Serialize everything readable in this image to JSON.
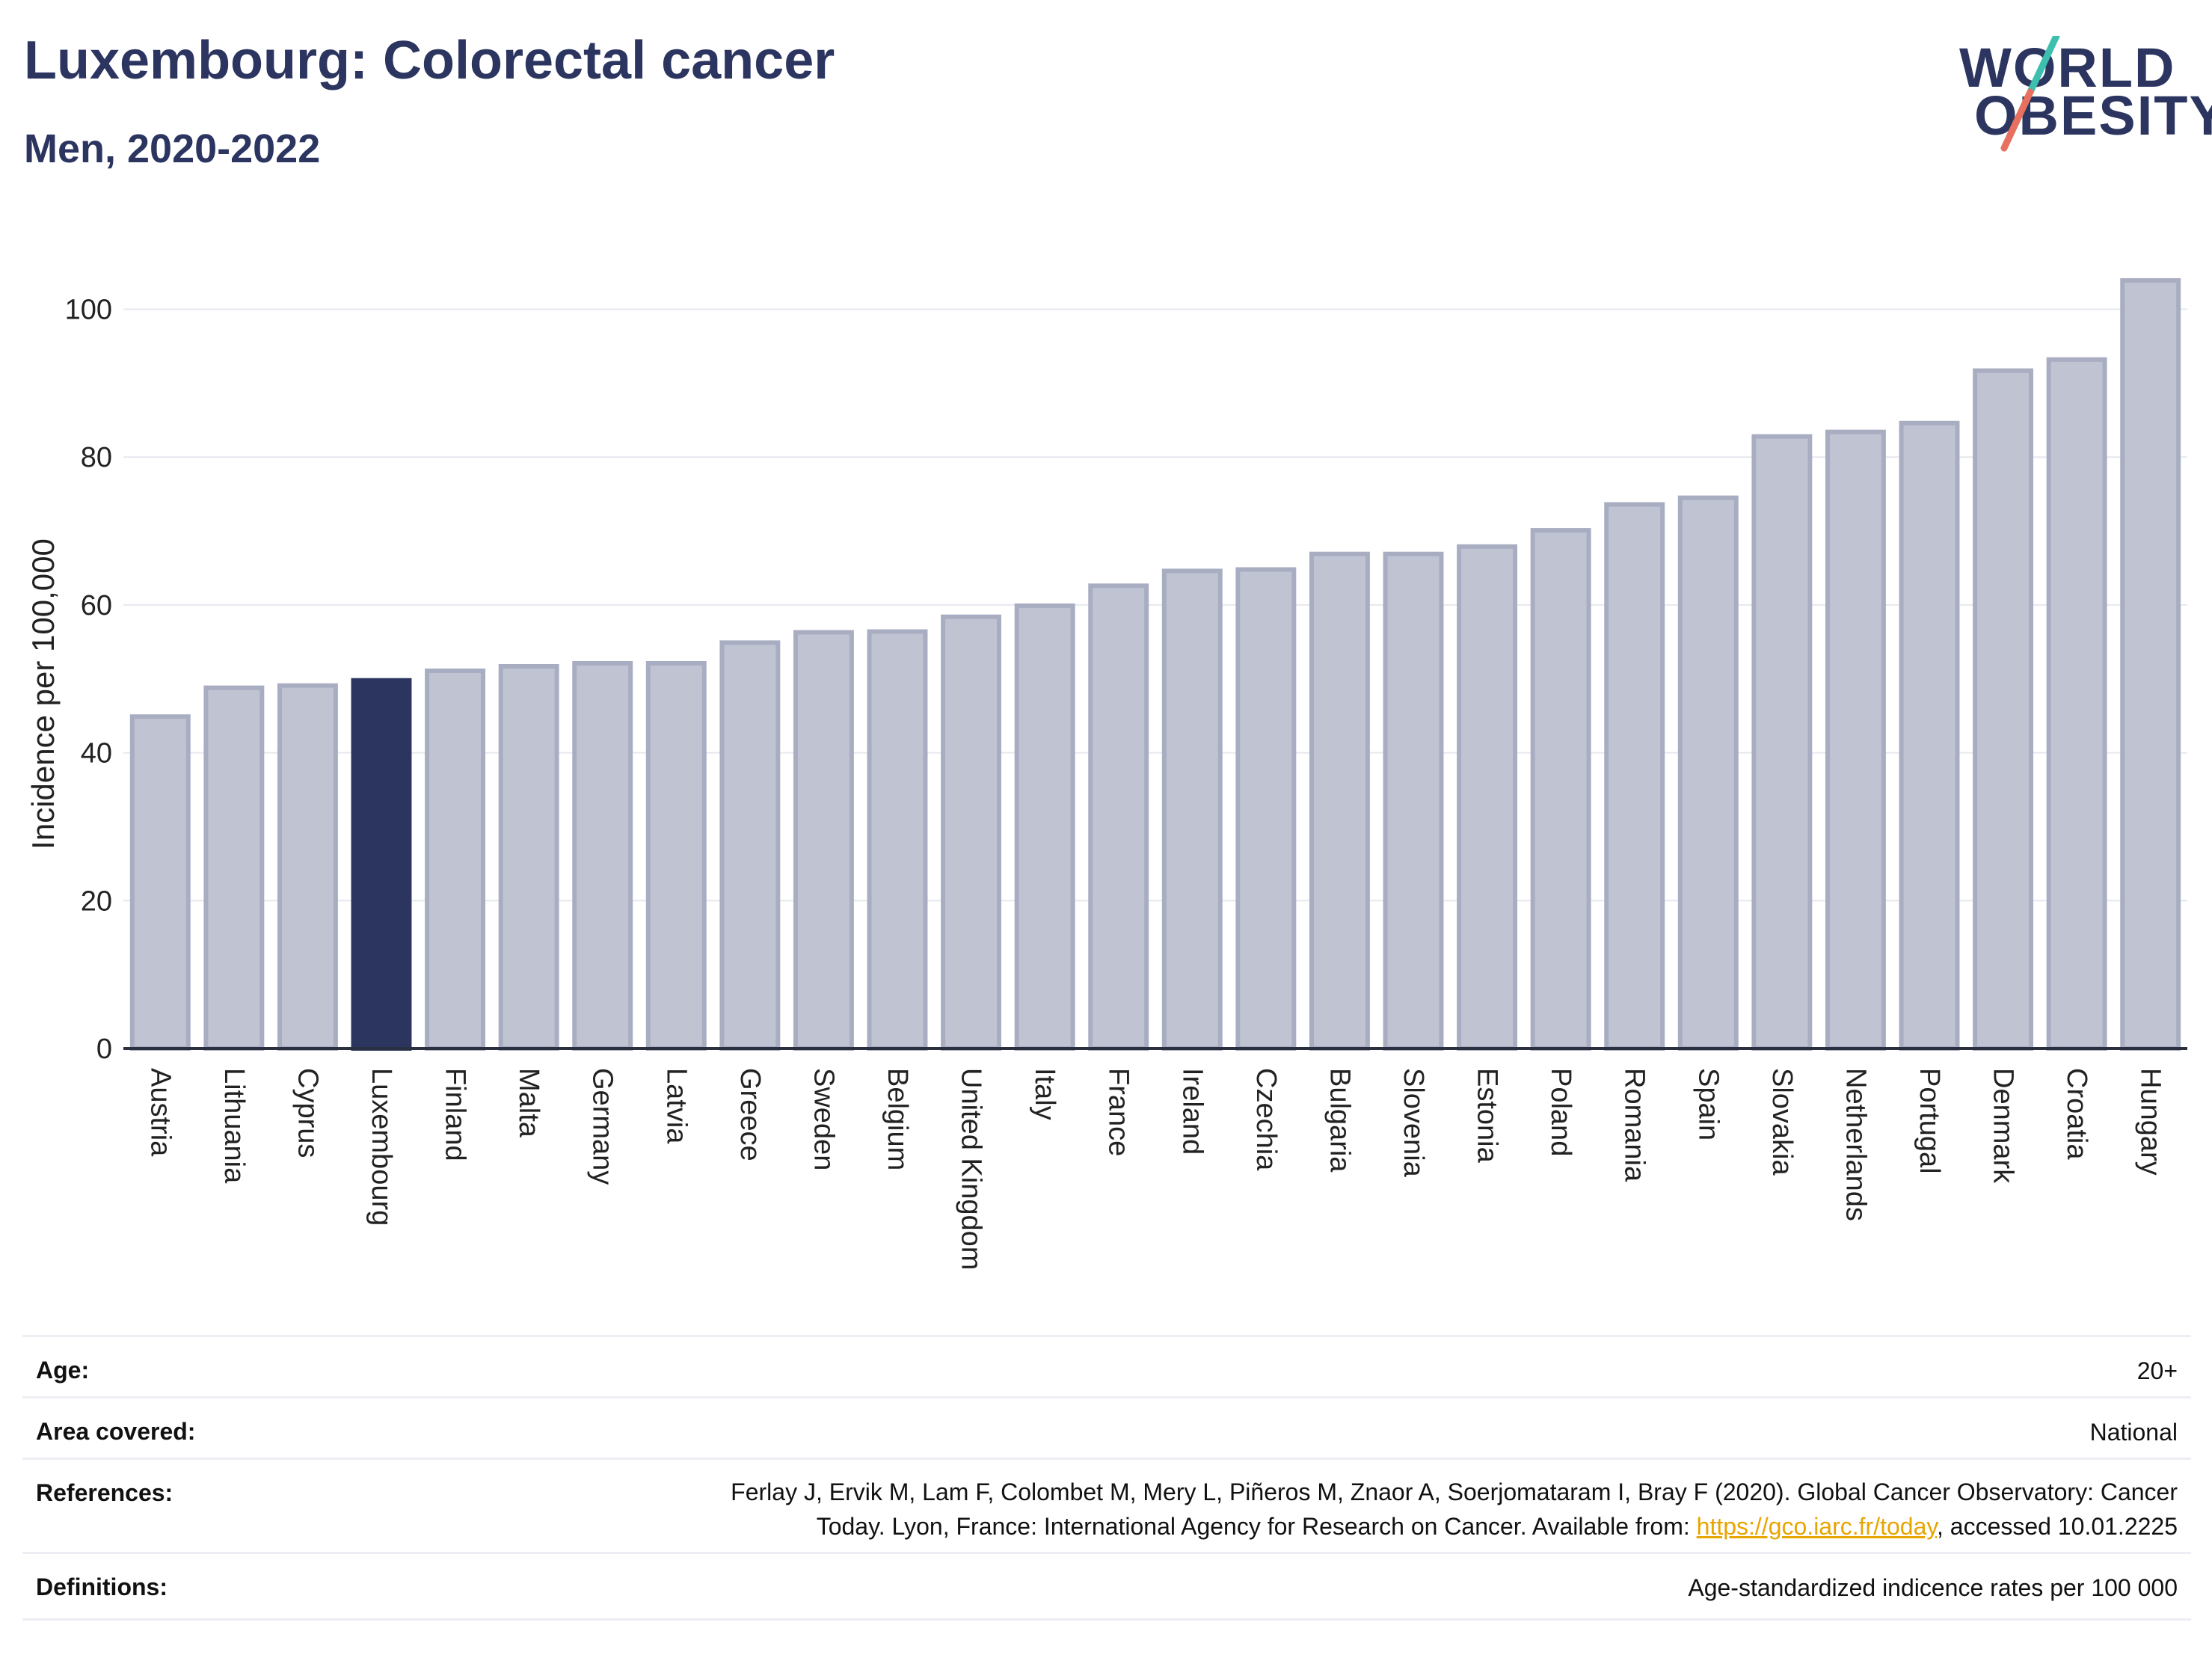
{
  "header": {
    "title": "Luxembourg: Colorectal cancer",
    "subtitle": "Men, 2020-2022"
  },
  "logo": {
    "line1": "WORLD",
    "line2": "OBESITY"
  },
  "chart_data": {
    "type": "bar",
    "ylabel": "Incidence per 100,000",
    "ylim": [
      0,
      104
    ],
    "yticks": [
      0,
      20,
      40,
      60,
      80,
      100
    ],
    "grid": true,
    "highlight": "Luxembourg",
    "highlight_color": "#2b3560",
    "bar_color": "#c0c4d2",
    "bar_edge_color": "#a8adc2",
    "categories": [
      "Austria",
      "Lithuania",
      "Cyprus",
      "Luxembourg",
      "Finland",
      "Malta",
      "Germany",
      "Latvia",
      "Greece",
      "Sweden",
      "Belgium",
      "United Kingdom",
      "Italy",
      "France",
      "Ireland",
      "Czechia",
      "Bulgaria",
      "Slovenia",
      "Estonia",
      "Poland",
      "Romania",
      "Spain",
      "Slovakia",
      "Netherlands",
      "Portugal",
      "Denmark",
      "Croatia",
      "Hungary"
    ],
    "values": [
      44.9,
      48.8,
      49.1,
      49.8,
      51.1,
      51.7,
      52.1,
      52.1,
      54.9,
      56.3,
      56.4,
      58.4,
      59.9,
      62.6,
      64.6,
      64.8,
      66.9,
      66.9,
      67.9,
      70.1,
      73.6,
      74.5,
      82.8,
      83.4,
      84.6,
      91.7,
      93.2,
      103.9
    ]
  },
  "details": {
    "age_label": "Age:",
    "age_value": "20+",
    "area_label": "Area covered:",
    "area_value": "National",
    "references_label": "References:",
    "references_line1": "Ferlay J, Ervik M, Lam F, Colombet M, Mery L, Piñeros M, Znaor A, Soerjomataram I, Bray F (2020). Global Cancer Observatory: Cancer",
    "references_line2_pre": "Today. Lyon, France: International Agency for Research on Cancer. Available from: ",
    "references_link": "https://gco.iarc.fr/today",
    "references_line2_post": ", accessed 10.01.2225",
    "definitions_label": "Definitions:",
    "definitions_value": "Age-standardized indicence rates per 100 000"
  }
}
